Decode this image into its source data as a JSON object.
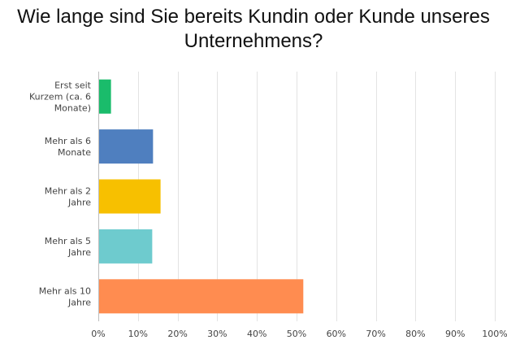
{
  "title_lines": [
    "Wie lange sind Sie bereits Kundin oder Kunde unseres",
    "Unternehmens?"
  ],
  "chart_data": {
    "type": "bar",
    "orientation": "horizontal",
    "title": "Wie lange sind Sie bereits Kundin oder Kunde unseres Unternehmens?",
    "categories": [
      [
        "Erst seit",
        "Kurzem (ca. 6",
        "Monate)"
      ],
      [
        "Mehr als 6",
        "Monate"
      ],
      [
        "Mehr als 2",
        "Jahre"
      ],
      [
        "Mehr als 5",
        "Jahre"
      ],
      [
        "Mehr als 10",
        "Jahre"
      ]
    ],
    "values": [
      3.2,
      13.8,
      15.7,
      13.6,
      51.7
    ],
    "colors": [
      "#1abc6b",
      "#4f7fbf",
      "#f7c000",
      "#6ecbce",
      "#ff8c50"
    ],
    "xlim": [
      0,
      100
    ],
    "xticks": [
      "0%",
      "10%",
      "20%",
      "30%",
      "40%",
      "50%",
      "60%",
      "70%",
      "80%",
      "90%",
      "100%"
    ],
    "grid": true,
    "legend": "none"
  }
}
